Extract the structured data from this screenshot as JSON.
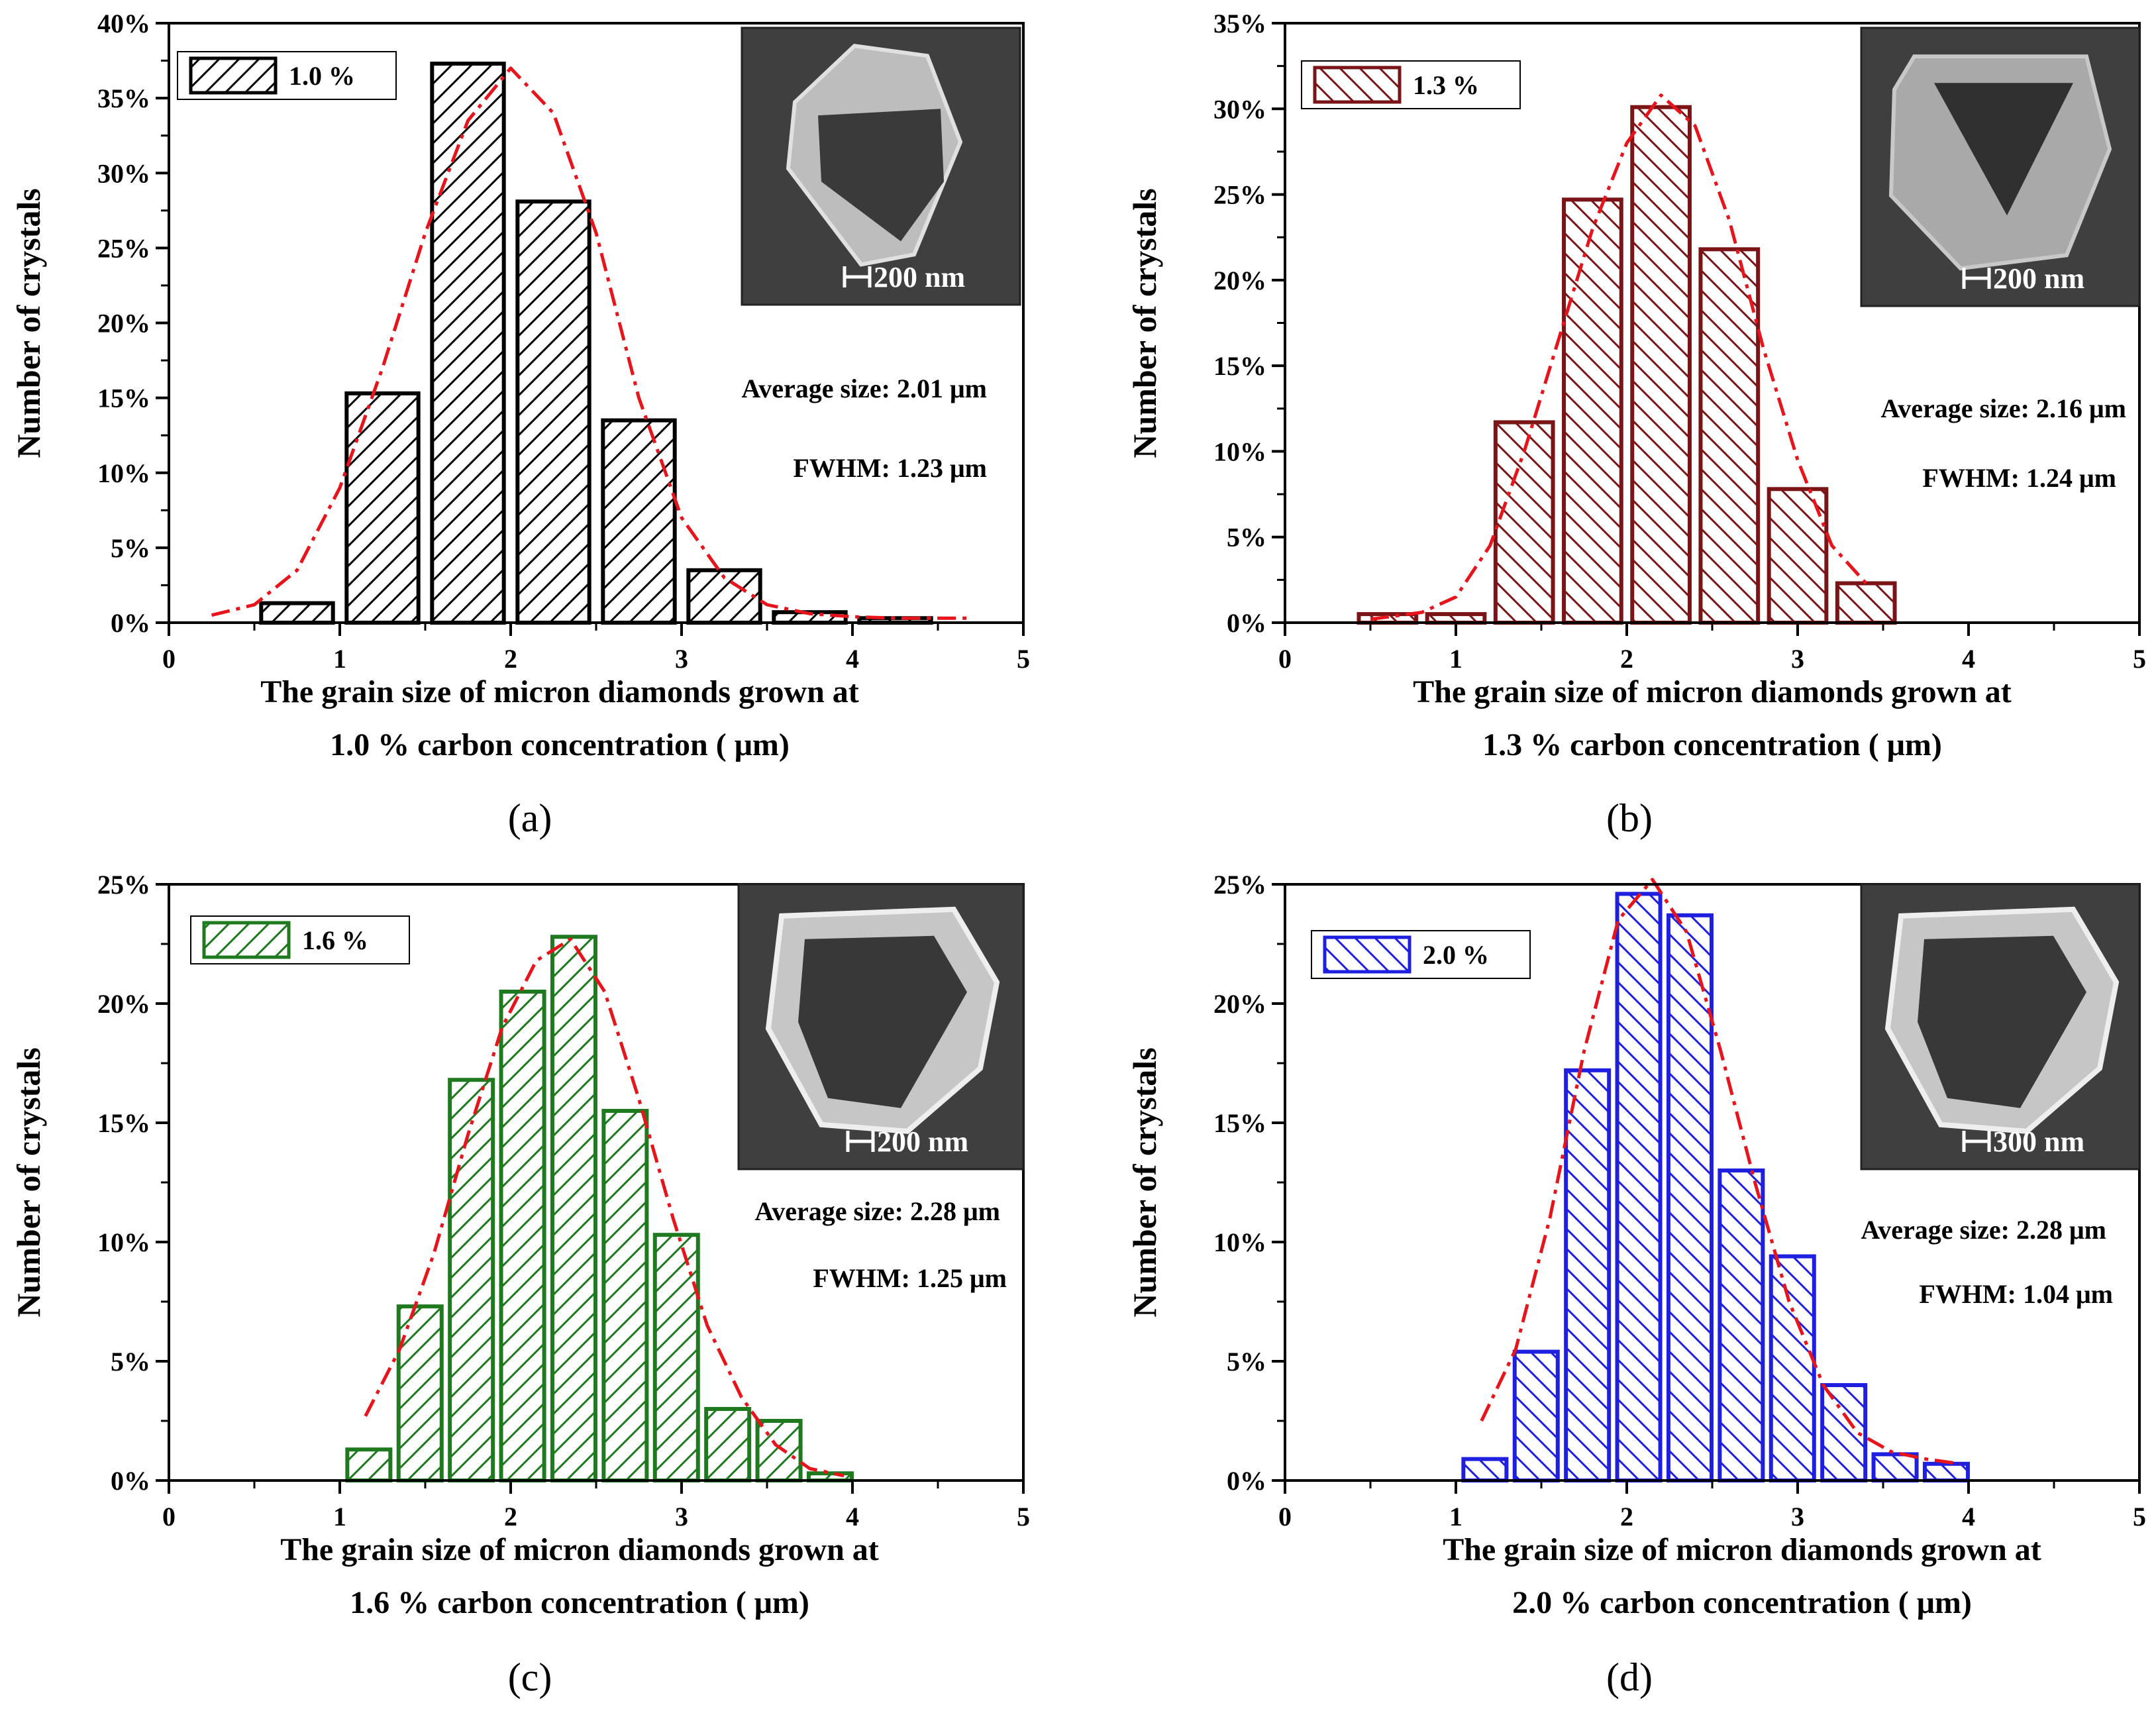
{
  "chart_data": [
    {
      "type": "bar",
      "panel": "(a)",
      "color": "#000000",
      "hatch": "forward",
      "legend": "1.0 %",
      "x": [
        0.75,
        1.25,
        1.75,
        2.25,
        2.75,
        3.25,
        3.75,
        4.25
      ],
      "values": [
        1.3,
        15.3,
        37.3,
        28.1,
        13.5,
        3.5,
        0.7,
        0.3
      ],
      "fit_curve": [
        [
          0.25,
          0.5
        ],
        [
          0.5,
          1.2
        ],
        [
          0.75,
          3.5
        ],
        [
          1.0,
          9.0
        ],
        [
          1.25,
          17.0
        ],
        [
          1.5,
          26.0
        ],
        [
          1.75,
          33.5
        ],
        [
          2.0,
          37.0
        ],
        [
          2.25,
          34.0
        ],
        [
          2.5,
          26.0
        ],
        [
          2.75,
          15.0
        ],
        [
          3.0,
          7.0
        ],
        [
          3.25,
          3.0
        ],
        [
          3.5,
          1.2
        ],
        [
          3.75,
          0.6
        ],
        [
          4.0,
          0.4
        ],
        [
          4.25,
          0.3
        ],
        [
          4.7,
          0.3
        ]
      ],
      "xlabel": [
        "The grain size  of micron diamonds grown at",
        "1.0 % carbon concentration ( μm)"
      ],
      "ylabel": "Number of crystals",
      "xlim": [
        0,
        5
      ],
      "ylim": [
        0,
        40
      ],
      "xticks": [
        "0",
        "1",
        "2",
        "3",
        "4",
        "5"
      ],
      "yticks": [
        "0%",
        "5%",
        "10%",
        "15%",
        "20%",
        "25%",
        "30%",
        "35%",
        "40%"
      ],
      "annotations": [
        "Average size: 2.01 μm",
        "FWHM: 1.23 μm"
      ],
      "scale_bar": "200 nm",
      "inset_shape": "pentagon"
    },
    {
      "type": "bar",
      "panel": "(b)",
      "color": "#7b1416",
      "hatch": "back",
      "legend": "1.3 %",
      "x": [
        0.6,
        1.0,
        1.4,
        1.8,
        2.2,
        2.6,
        3.0,
        3.4
      ],
      "values": [
        0.5,
        0.5,
        11.7,
        24.7,
        30.1,
        21.8,
        7.8,
        2.3
      ],
      "fit_curve": [
        [
          0.5,
          0.2
        ],
        [
          0.8,
          0.6
        ],
        [
          1.0,
          1.5
        ],
        [
          1.2,
          4.5
        ],
        [
          1.4,
          10.0
        ],
        [
          1.6,
          16.5
        ],
        [
          1.8,
          23.0
        ],
        [
          2.0,
          28.0
        ],
        [
          2.2,
          30.8
        ],
        [
          2.4,
          29.0
        ],
        [
          2.6,
          23.5
        ],
        [
          2.8,
          16.0
        ],
        [
          3.0,
          9.5
        ],
        [
          3.2,
          4.5
        ],
        [
          3.4,
          2.3
        ]
      ],
      "xlabel": [
        "The grain size  of micron diamonds grown at",
        "1.3 % carbon concentration ( μm)"
      ],
      "ylabel": "Number of crystals",
      "xlim": [
        0,
        5
      ],
      "ylim": [
        0,
        35
      ],
      "xticks": [
        "0",
        "1",
        "2",
        "3",
        "4",
        "5"
      ],
      "yticks": [
        "0%",
        "5%",
        "10%",
        "15%",
        "20%",
        "25%",
        "30%",
        "35%"
      ],
      "annotations": [
        "Average size: 2.16 μm",
        "FWHM: 1.24 μm"
      ],
      "scale_bar": "200 nm",
      "inset_shape": "triangle"
    },
    {
      "type": "bar",
      "panel": "(c)",
      "color": "#1f7a1f",
      "hatch": "forward",
      "legend": "1.6 %",
      "x": [
        1.17,
        1.47,
        1.77,
        2.07,
        2.37,
        2.67,
        2.97,
        3.27,
        3.57,
        3.87
      ],
      "values": [
        1.3,
        7.3,
        16.8,
        20.5,
        22.8,
        15.5,
        10.3,
        3.0,
        2.5,
        0.3
      ],
      "fit_curve": [
        [
          1.15,
          2.7
        ],
        [
          1.35,
          5.5
        ],
        [
          1.55,
          9.5
        ],
        [
          1.75,
          14.5
        ],
        [
          1.95,
          19.0
        ],
        [
          2.15,
          21.8
        ],
        [
          2.35,
          22.7
        ],
        [
          2.55,
          20.5
        ],
        [
          2.75,
          16.0
        ],
        [
          2.95,
          11.0
        ],
        [
          3.15,
          6.5
        ],
        [
          3.35,
          3.5
        ],
        [
          3.55,
          1.5
        ],
        [
          3.75,
          0.5
        ],
        [
          3.95,
          0.2
        ]
      ],
      "xlabel": [
        "The grain size  of micron diamonds grown at",
        "1.6 % carbon concentration ( μm)"
      ],
      "ylabel": "Number of crystals",
      "xlim": [
        0,
        5
      ],
      "ylim": [
        0,
        25
      ],
      "xticks": [
        "0",
        "1",
        "2",
        "3",
        "4",
        "5"
      ],
      "yticks": [
        "0%",
        "5%",
        "10%",
        "15%",
        "20%",
        "25%"
      ],
      "annotations": [
        "Average size: 2.28 μm",
        "FWHM: 1.25 μm"
      ],
      "scale_bar": "200 nm",
      "inset_shape": "rounded-triangle"
    },
    {
      "type": "bar",
      "panel": "(d)",
      "color": "#1f1fe0",
      "hatch": "back",
      "legend": "2.0 %",
      "x": [
        1.17,
        1.47,
        1.77,
        2.07,
        2.37,
        2.67,
        2.97,
        3.27,
        3.57,
        3.87
      ],
      "values": [
        0.9,
        5.4,
        17.2,
        24.6,
        23.7,
        13.0,
        9.4,
        4.0,
        1.1,
        0.7
      ],
      "fit_curve": [
        [
          1.15,
          2.5
        ],
        [
          1.35,
          5.5
        ],
        [
          1.55,
          11.0
        ],
        [
          1.75,
          18.0
        ],
        [
          1.95,
          23.5
        ],
        [
          2.15,
          25.2
        ],
        [
          2.35,
          23.0
        ],
        [
          2.55,
          18.0
        ],
        [
          2.75,
          12.5
        ],
        [
          2.95,
          7.5
        ],
        [
          3.15,
          4.0
        ],
        [
          3.35,
          2.0
        ],
        [
          3.55,
          1.2
        ],
        [
          3.75,
          0.9
        ],
        [
          3.95,
          0.7
        ]
      ],
      "xlabel": [
        "The grain size  of micron diamonds grown at",
        "2.0 % carbon concentration ( μm)"
      ],
      "ylabel": "Number of crystals",
      "xlim": [
        0,
        5
      ],
      "ylim": [
        0,
        25
      ],
      "xticks": [
        "0",
        "1",
        "2",
        "3",
        "4",
        "5"
      ],
      "yticks": [
        "0%",
        "5%",
        "10%",
        "15%",
        "20%",
        "25%"
      ],
      "annotations": [
        "Average size: 2.28 μm",
        "FWHM: 1.04 μm"
      ],
      "scale_bar": "300 nm",
      "inset_shape": "rounded-triangle"
    }
  ],
  "fit_color": "#e8141c"
}
